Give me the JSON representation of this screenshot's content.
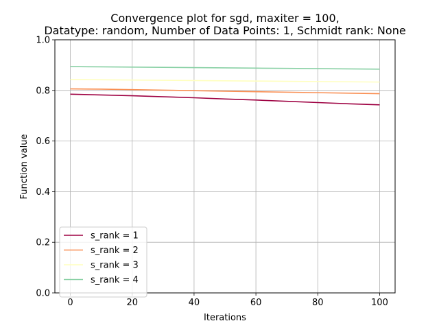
{
  "chart_data": {
    "type": "line",
    "title_lines": [
      "Convergence plot for sgd, maxiter = 100,",
      "Datatype: random, Number of Data Points: 1, Schmidt rank: None"
    ],
    "xlabel": "Iterations",
    "ylabel": "Function value",
    "xlim": [
      -5,
      105
    ],
    "ylim": [
      0.0,
      1.0
    ],
    "x_ticks": [
      0,
      20,
      40,
      60,
      80,
      100
    ],
    "x_tick_labels": [
      "0",
      "20",
      "40",
      "60",
      "80",
      "100"
    ],
    "y_ticks": [
      0.0,
      0.2,
      0.4,
      0.6,
      0.8,
      1.0
    ],
    "y_tick_labels": [
      "0.0",
      "0.2",
      "0.4",
      "0.6",
      "0.8",
      "1.0"
    ],
    "grid": true,
    "legend_position": "lower-left",
    "x": [
      0,
      10,
      20,
      30,
      40,
      50,
      60,
      70,
      80,
      90,
      100
    ],
    "series": [
      {
        "name": "s_rank = 1",
        "color": "#9e0142",
        "values": [
          0.785,
          0.782,
          0.779,
          0.775,
          0.771,
          0.766,
          0.762,
          0.757,
          0.752,
          0.747,
          0.743
        ]
      },
      {
        "name": "s_rank = 2",
        "color": "#f98e52",
        "values": [
          0.806,
          0.805,
          0.803,
          0.801,
          0.799,
          0.797,
          0.795,
          0.793,
          0.791,
          0.789,
          0.787
        ]
      },
      {
        "name": "s_rank = 3",
        "color": "#ffffbe",
        "values": [
          0.843,
          0.842,
          0.841,
          0.84,
          0.839,
          0.838,
          0.837,
          0.836,
          0.835,
          0.834,
          0.833
        ]
      },
      {
        "name": "s_rank = 4",
        "color": "#88d0a4",
        "values": [
          0.894,
          0.893,
          0.892,
          0.891,
          0.89,
          0.889,
          0.888,
          0.887,
          0.886,
          0.885,
          0.884
        ]
      }
    ]
  }
}
